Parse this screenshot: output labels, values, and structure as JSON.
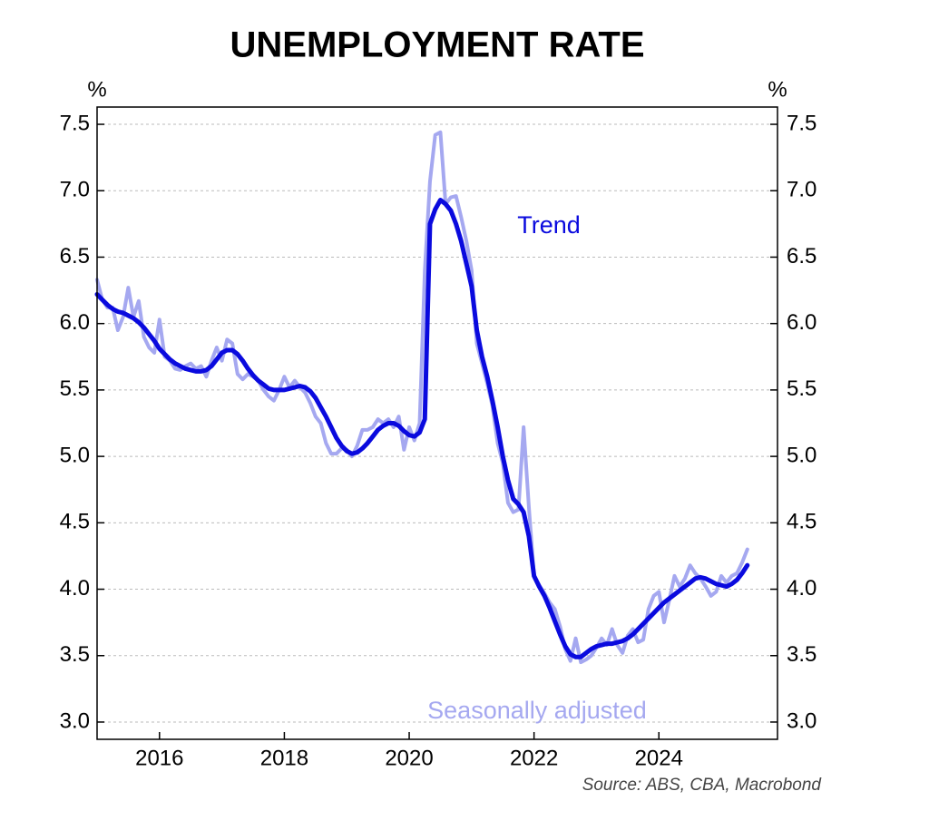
{
  "chart_data": {
    "type": "line",
    "title": "UNEMPLOYMENT RATE",
    "y_unit": "%",
    "source": "Source: ABS, CBA, Macrobond",
    "xlim": [
      2015.0,
      2025.9
    ],
    "xticks": [
      2016,
      2018,
      2020,
      2022,
      2024
    ],
    "ylim": [
      2.87,
      7.63
    ],
    "yticks": [
      {
        "value": 3,
        "label": "3.0"
      },
      3.5,
      {
        "value": 4,
        "label": "4.0"
      },
      4.5,
      {
        "value": 5,
        "label": "5.0"
      },
      5.5,
      {
        "value": 6,
        "label": "6.0"
      },
      6.5,
      {
        "value": 7,
        "label": "7.0"
      },
      7.5
    ],
    "grid": true,
    "x": [
      2015.0,
      2015.083,
      2015.167,
      2015.25,
      2015.333,
      2015.417,
      2015.5,
      2015.583,
      2015.667,
      2015.75,
      2015.833,
      2015.917,
      2016.0,
      2016.083,
      2016.167,
      2016.25,
      2016.333,
      2016.417,
      2016.5,
      2016.583,
      2016.667,
      2016.75,
      2016.833,
      2016.917,
      2017.0,
      2017.083,
      2017.167,
      2017.25,
      2017.333,
      2017.417,
      2017.5,
      2017.583,
      2017.667,
      2017.75,
      2017.833,
      2017.917,
      2018.0,
      2018.083,
      2018.167,
      2018.25,
      2018.333,
      2018.417,
      2018.5,
      2018.583,
      2018.667,
      2018.75,
      2018.833,
      2018.917,
      2019.0,
      2019.083,
      2019.167,
      2019.25,
      2019.333,
      2019.417,
      2019.5,
      2019.583,
      2019.667,
      2019.75,
      2019.833,
      2019.917,
      2020.0,
      2020.083,
      2020.167,
      2020.25,
      2020.333,
      2020.417,
      2020.5,
      2020.583,
      2020.667,
      2020.75,
      2020.833,
      2020.917,
      2021.0,
      2021.083,
      2021.167,
      2021.25,
      2021.333,
      2021.417,
      2021.5,
      2021.583,
      2021.667,
      2021.75,
      2021.833,
      2021.917,
      2022.0,
      2022.083,
      2022.167,
      2022.25,
      2022.333,
      2022.417,
      2022.5,
      2022.583,
      2022.667,
      2022.75,
      2022.833,
      2022.917,
      2023.0,
      2023.083,
      2023.167,
      2023.25,
      2023.333,
      2023.417,
      2023.5,
      2023.583,
      2023.667,
      2023.75,
      2023.833,
      2023.917,
      2024.0,
      2024.083,
      2024.167,
      2024.25,
      2024.333,
      2024.417,
      2024.5,
      2024.583,
      2024.667,
      2024.75,
      2024.833,
      2024.917,
      2025.0,
      2025.083,
      2025.167,
      2025.25,
      2025.333,
      2025.417
    ],
    "series": [
      {
        "name": "Trend",
        "color": "#0a0ade",
        "width": 5,
        "values": [
          6.22,
          6.18,
          6.14,
          6.11,
          6.09,
          6.08,
          6.06,
          6.04,
          6.01,
          5.97,
          5.92,
          5.87,
          5.81,
          5.77,
          5.73,
          5.7,
          5.68,
          5.66,
          5.65,
          5.64,
          5.64,
          5.65,
          5.68,
          5.73,
          5.78,
          5.8,
          5.8,
          5.77,
          5.72,
          5.66,
          5.61,
          5.57,
          5.54,
          5.51,
          5.5,
          5.5,
          5.5,
          5.51,
          5.52,
          5.53,
          5.52,
          5.49,
          5.44,
          5.37,
          5.3,
          5.22,
          5.14,
          5.08,
          5.04,
          5.02,
          5.03,
          5.06,
          5.1,
          5.15,
          5.2,
          5.23,
          5.25,
          5.25,
          5.23,
          5.19,
          5.16,
          5.15,
          5.18,
          5.28,
          6.75,
          6.86,
          6.93,
          6.9,
          6.85,
          6.75,
          6.62,
          6.45,
          6.28,
          5.95,
          5.75,
          5.6,
          5.42,
          5.22,
          5.0,
          4.82,
          4.68,
          4.64,
          4.58,
          4.4,
          4.1,
          4.02,
          3.95,
          3.86,
          3.76,
          3.66,
          3.57,
          3.51,
          3.49,
          3.49,
          3.52,
          3.55,
          3.57,
          3.58,
          3.59,
          3.59,
          3.6,
          3.61,
          3.63,
          3.66,
          3.7,
          3.74,
          3.78,
          3.82,
          3.86,
          3.9,
          3.93,
          3.96,
          3.99,
          4.02,
          4.05,
          4.08,
          4.09,
          4.08,
          4.06,
          4.04,
          4.03,
          4.02,
          4.04,
          4.07,
          4.12,
          4.18
        ]
      },
      {
        "name": "Seasonally adjusted",
        "color": "#a5a8f0",
        "width": 4,
        "values": [
          6.33,
          6.18,
          6.12,
          6.12,
          5.95,
          6.05,
          6.27,
          6.05,
          6.17,
          5.9,
          5.82,
          5.78,
          6.03,
          5.75,
          5.72,
          5.66,
          5.65,
          5.68,
          5.7,
          5.66,
          5.68,
          5.6,
          5.72,
          5.82,
          5.72,
          5.88,
          5.85,
          5.62,
          5.58,
          5.62,
          5.6,
          5.57,
          5.5,
          5.45,
          5.42,
          5.5,
          5.6,
          5.52,
          5.57,
          5.52,
          5.48,
          5.4,
          5.3,
          5.25,
          5.1,
          5.02,
          5.02,
          5.06,
          5.05,
          5.0,
          5.08,
          5.2,
          5.2,
          5.22,
          5.28,
          5.25,
          5.28,
          5.22,
          5.3,
          5.05,
          5.22,
          5.12,
          5.25,
          6.4,
          7.07,
          7.42,
          7.44,
          6.9,
          6.95,
          6.96,
          6.8,
          6.62,
          6.4,
          5.85,
          5.7,
          5.55,
          5.38,
          5.1,
          4.95,
          4.65,
          4.58,
          4.6,
          5.22,
          4.62,
          4.1,
          4.03,
          3.97,
          3.9,
          3.85,
          3.72,
          3.55,
          3.46,
          3.63,
          3.45,
          3.47,
          3.5,
          3.56,
          3.63,
          3.58,
          3.7,
          3.58,
          3.52,
          3.65,
          3.7,
          3.6,
          3.62,
          3.85,
          3.95,
          3.98,
          3.75,
          3.92,
          4.1,
          4.02,
          4.08,
          4.18,
          4.12,
          4.08,
          4.02,
          3.95,
          3.98,
          4.1,
          4.05,
          4.1,
          4.12,
          4.2,
          4.3
        ]
      }
    ]
  }
}
